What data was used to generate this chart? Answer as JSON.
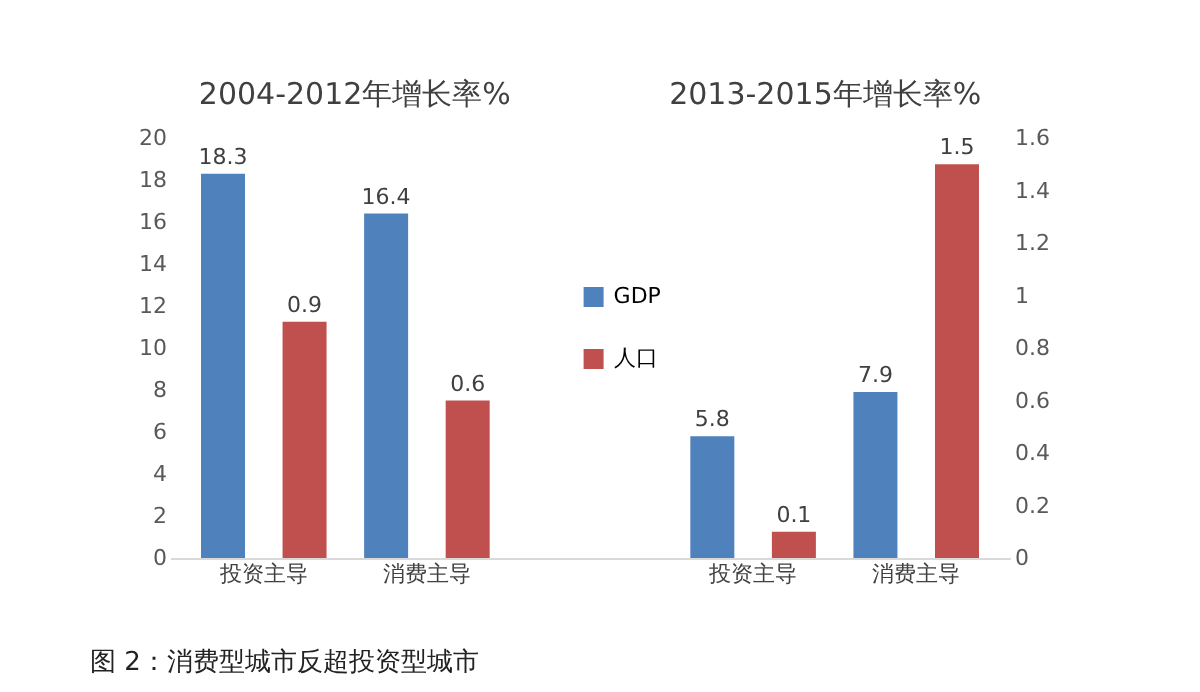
{
  "chart_data": {
    "type": "bar",
    "categories": [
      "投资主导",
      "消费主导",
      null,
      "投资主导",
      "消费主导"
    ],
    "series": [
      {
        "name": "GDP",
        "color": "#4f81bd",
        "values": [
          18.3,
          16.4,
          null,
          5.8,
          7.9
        ]
      },
      {
        "name": "人口",
        "color": "#c0504d",
        "values": [
          0.9,
          0.6,
          null,
          0.1,
          1.5
        ],
        "axis": "y2"
      }
    ],
    "ylim": [
      0,
      20
    ],
    "yticks": [
      0,
      2,
      4,
      6,
      8,
      10,
      12,
      14,
      16,
      18,
      20
    ],
    "y2lim": [
      0,
      1.6
    ],
    "y2ticks": [
      0,
      0.2,
      0.4,
      0.6,
      0.8,
      1,
      1.2,
      1.4,
      1.6
    ],
    "data_labels": true,
    "grid": false,
    "legend": "top",
    "annotations": [
      "2004-2012年增长率%",
      "2013-2015年增长率%",
      "图 2：消费型城市反超投资型城市"
    ]
  }
}
